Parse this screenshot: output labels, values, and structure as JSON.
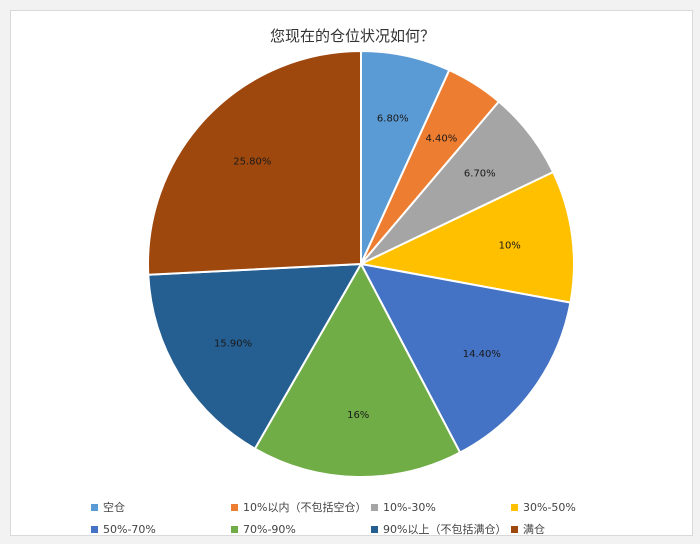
{
  "chart_data": {
    "type": "pie",
    "title": "您现在的仓位状况如何？",
    "labels": [
      "空仓",
      "10%以内（不包括空仓）",
      "10%-30%",
      "30%-50%",
      "50%-70%",
      "70%-90%",
      "90%以上（不包括满仓）",
      "满仓"
    ],
    "values": [
      6.8,
      4.4,
      6.7,
      10,
      14.4,
      16,
      15.9,
      25.8
    ],
    "value_labels": [
      "6.80%",
      "4.40%",
      "6.70%",
      "10%",
      "14.40%",
      "16%",
      "15.90%",
      "25.80%"
    ],
    "colors": [
      "#5b9bd5",
      "#ed7d31",
      "#a5a5a5",
      "#ffc000",
      "#4472c4",
      "#70ad47",
      "#255e91",
      "#9e480e"
    ],
    "legend_position": "bottom"
  }
}
